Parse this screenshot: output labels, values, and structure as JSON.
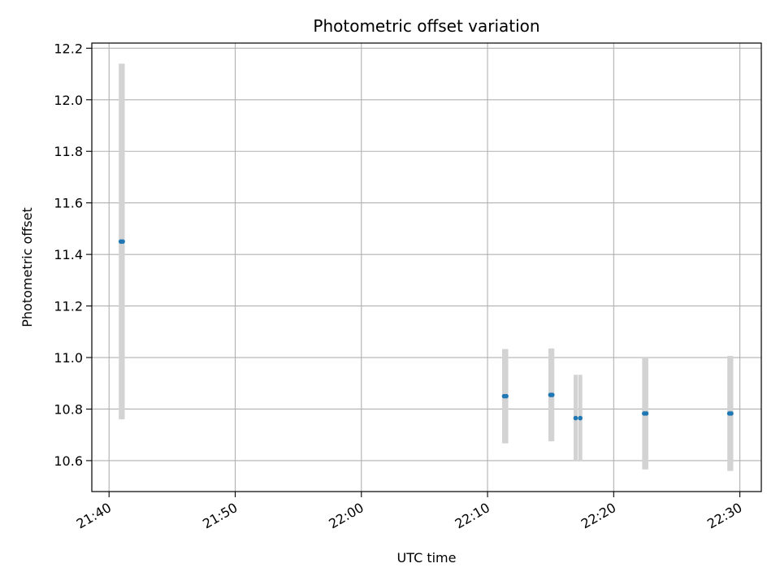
{
  "chart_data": {
    "type": "scatter",
    "title": "Photometric offset variation",
    "xlabel": "UTC time",
    "ylabel": "Photometric offset",
    "x_is_time": true,
    "xlim": [
      "21:38:38",
      "22:31:42"
    ],
    "ylim": [
      10.48,
      12.22
    ],
    "xticks": [
      "21:40",
      "21:50",
      "22:00",
      "22:10",
      "22:20",
      "22:30"
    ],
    "yticks": [
      10.6,
      10.8,
      11.0,
      11.2,
      11.4,
      11.6,
      11.8,
      12.0,
      12.2
    ],
    "ytick_labels": [
      "10.6",
      "10.8",
      "11.0",
      "11.2",
      "11.4",
      "11.6",
      "11.8",
      "12.0",
      "12.2"
    ],
    "grid": true,
    "marker_color": "#1f77b4",
    "errorbar_color": "#d3d3d3",
    "points": [
      {
        "x": "21:40:56",
        "y": 11.45,
        "yerr": 0.69
      },
      {
        "x": "21:41:05",
        "y": 11.45,
        "yerr": 0.69
      },
      {
        "x": "22:11:19",
        "y": 10.85,
        "yerr": 0.183
      },
      {
        "x": "22:11:29",
        "y": 10.85,
        "yerr": 0.183
      },
      {
        "x": "22:14:59",
        "y": 10.855,
        "yerr": 0.18
      },
      {
        "x": "22:15:08",
        "y": 10.855,
        "yerr": 0.18
      },
      {
        "x": "22:16:59",
        "y": 10.765,
        "yerr": 0.168
      },
      {
        "x": "22:17:21",
        "y": 10.765,
        "yerr": 0.168
      },
      {
        "x": "22:22:25",
        "y": 10.783,
        "yerr": 0.217
      },
      {
        "x": "22:22:35",
        "y": 10.783,
        "yerr": 0.217
      },
      {
        "x": "22:29:10",
        "y": 10.783,
        "yerr": 0.223
      },
      {
        "x": "22:29:19",
        "y": 10.783,
        "yerr": 0.223
      }
    ]
  }
}
